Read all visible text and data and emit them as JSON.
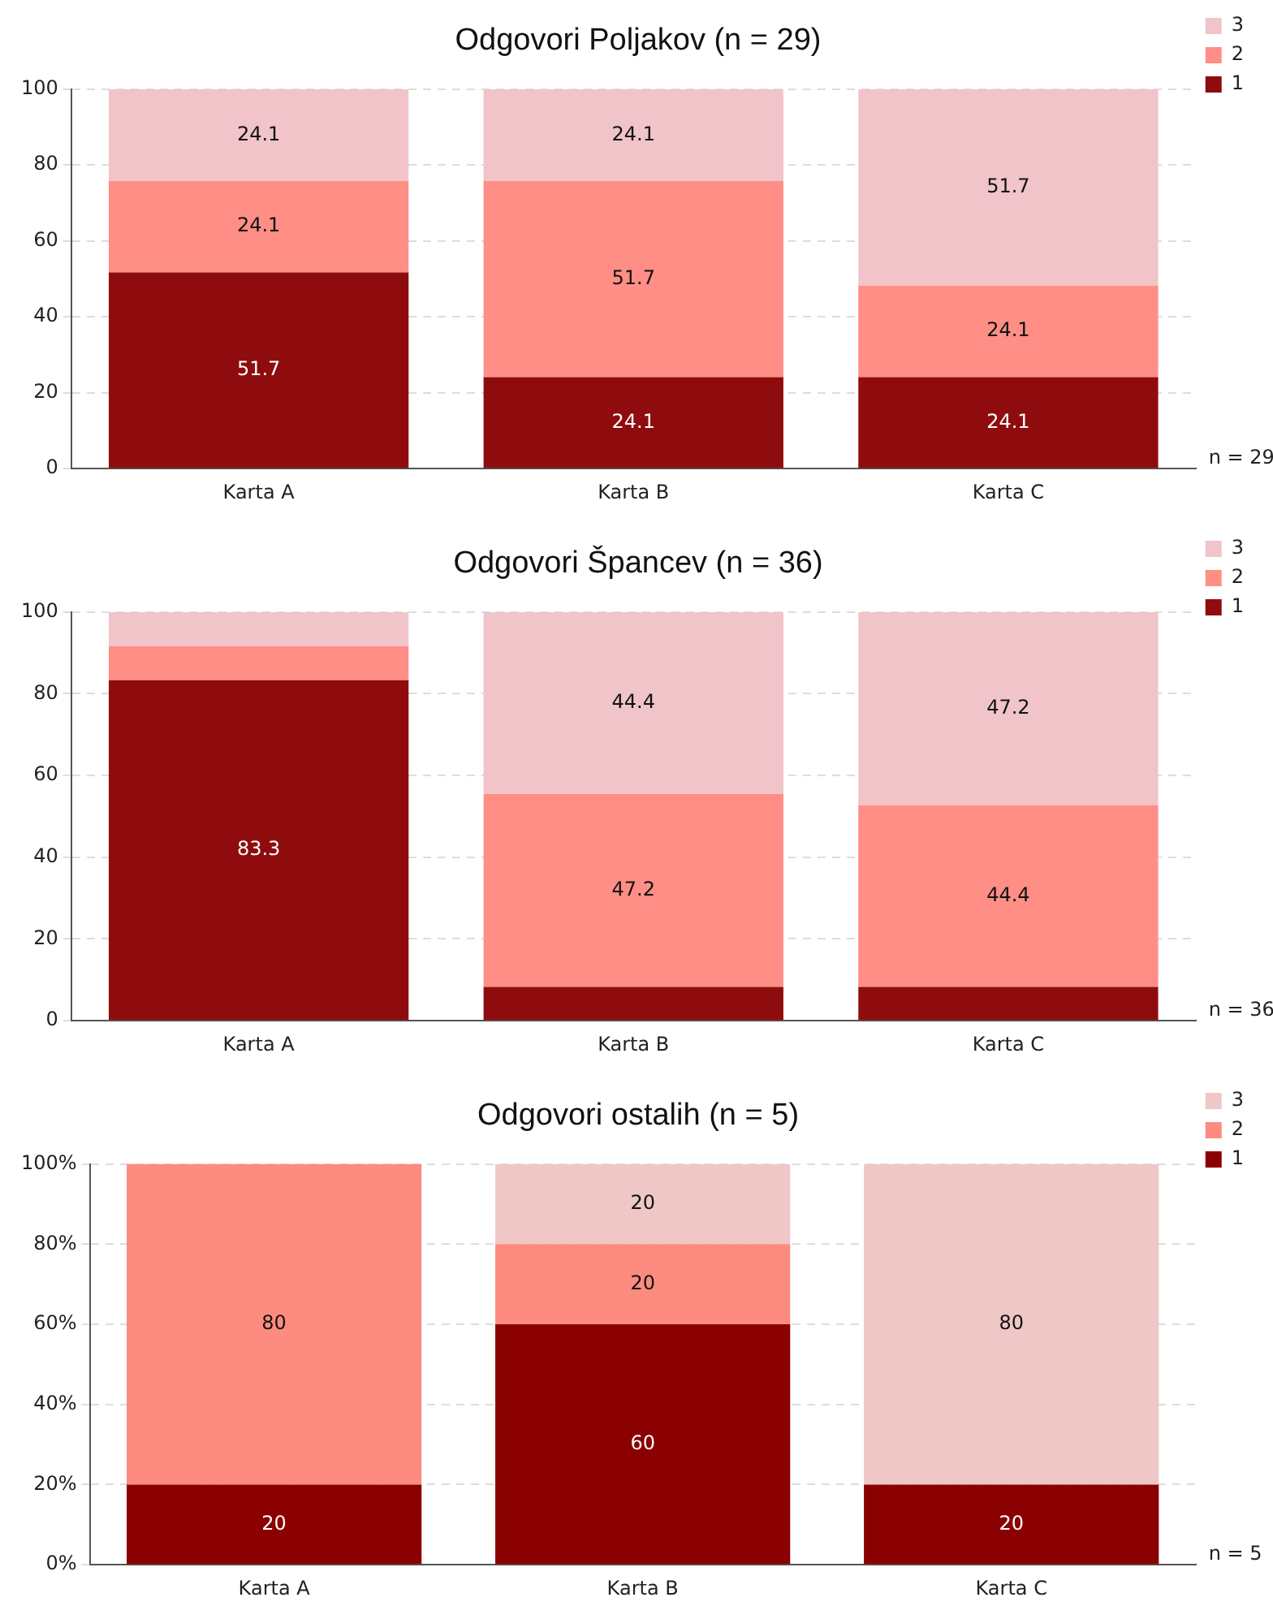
{
  "chart_data": [
    {
      "type": "bar",
      "title": "Odgovori Poljakov (n = 29)",
      "categories": [
        "Karta A",
        "Karta B",
        "Karta C"
      ],
      "stacked": true,
      "ylim": [
        0,
        100
      ],
      "yticks": [
        0,
        20,
        40,
        60,
        80,
        100
      ],
      "grid": "y",
      "legend": "top right",
      "annotations": [
        "n = 29"
      ],
      "series": [
        {
          "name": "1",
          "color": "#8f0c0e",
          "values": [
            51.7,
            24.1,
            24.1
          ],
          "value_labels": [
            "51.7",
            "24.1",
            "24.1"
          ]
        },
        {
          "name": "2",
          "color": "#fe8e86",
          "values": [
            24.1,
            51.7,
            24.1
          ],
          "value_labels": [
            "24.1",
            "51.7",
            "24.1"
          ]
        },
        {
          "name": "3",
          "color": "#f0c4c9",
          "values": [
            24.1,
            24.1,
            51.7
          ],
          "value_labels": [
            "24.1",
            "24.1",
            "51.7"
          ]
        }
      ]
    },
    {
      "type": "bar",
      "title": "Odgovori Špancev (n = 36)",
      "categories": [
        "Karta A",
        "Karta B",
        "Karta C"
      ],
      "stacked": true,
      "ylim": [
        0,
        100
      ],
      "yticks": [
        0,
        20,
        40,
        60,
        80,
        100
      ],
      "grid": "y",
      "legend": "top right",
      "annotations": [
        "n = 36"
      ],
      "series": [
        {
          "name": "1",
          "color": "#8f0c0e",
          "values": [
            83.3,
            8.3,
            8.3
          ],
          "value_labels": [
            "83.3",
            null,
            null
          ]
        },
        {
          "name": "2",
          "color": "#fe8e86",
          "values": [
            8.3,
            47.2,
            44.4
          ],
          "value_labels": [
            null,
            "47.2",
            "44.4"
          ]
        },
        {
          "name": "3",
          "color": "#f0c4c9",
          "values": [
            8.3,
            44.4,
            47.2
          ],
          "value_labels": [
            null,
            "44.4",
            "47.2"
          ]
        }
      ]
    },
    {
      "type": "bar",
      "title": "Odgovori ostalih (n = 5)",
      "categories": [
        "Karta A",
        "Karta B",
        "Karta C"
      ],
      "stacked": true,
      "ylim": [
        0,
        100
      ],
      "yticks": [
        {
          "value": 0,
          "label": "0%"
        },
        {
          "value": 20,
          "label": "20%"
        },
        {
          "value": 40,
          "label": "40%"
        },
        {
          "value": 60,
          "label": "60%"
        },
        {
          "value": 80,
          "label": "80%"
        },
        {
          "value": 100,
          "label": "100%"
        }
      ],
      "grid": "y",
      "legend": "top right",
      "annotations": [
        "n = 5"
      ],
      "series": [
        {
          "name": "1",
          "color": "#8b0000",
          "values": [
            20,
            60,
            20
          ],
          "value_labels": [
            "20",
            "60",
            "20"
          ]
        },
        {
          "name": "2",
          "color": "#fe8b80",
          "values": [
            80,
            20,
            0
          ],
          "value_labels": [
            "80",
            "20",
            null
          ]
        },
        {
          "name": "3",
          "color": "#efc7c7",
          "values": [
            0,
            20,
            80
          ],
          "value_labels": [
            null,
            "20",
            "80"
          ]
        }
      ]
    }
  ]
}
